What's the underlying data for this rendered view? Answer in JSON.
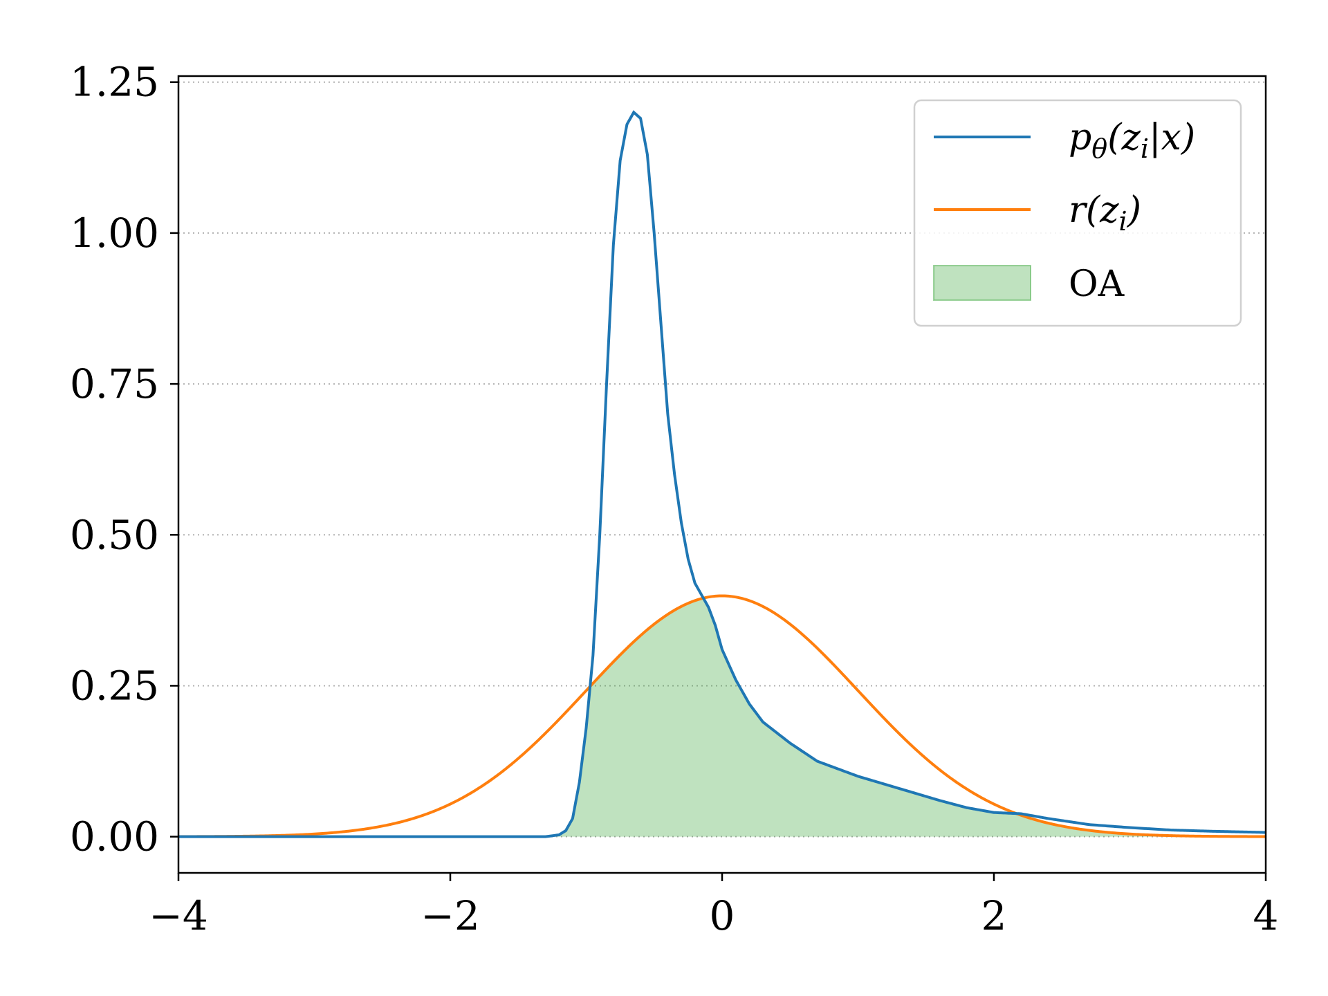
{
  "chart_data": {
    "type": "line",
    "title": "",
    "xlabel": "",
    "ylabel": "",
    "xlim": [
      -4,
      4
    ],
    "ylim": [
      -0.06,
      1.26
    ],
    "x_ticks": [
      -4,
      -2,
      0,
      2,
      4
    ],
    "x_tick_labels": [
      "−4",
      "−2",
      "0",
      "2",
      "4"
    ],
    "y_ticks": [
      0,
      0.25,
      0.5,
      0.75,
      1.0,
      1.25
    ],
    "y_tick_labels": [
      "0.00",
      "0.25",
      "0.50",
      "0.75",
      "1.00",
      "1.25"
    ],
    "grid": "horizontal dotted",
    "legend_position": "upper right",
    "series": [
      {
        "name": "p_θ(z_i|x)",
        "legend": {
          "base": "p",
          "sub": "θ",
          "rest": "(z",
          "sub2": "i",
          "tail": "|x)"
        },
        "color": "#1f77b4",
        "x": [
          -4.0,
          -1.3,
          -1.2,
          -1.15,
          -1.1,
          -1.05,
          -1.0,
          -0.95,
          -0.9,
          -0.85,
          -0.8,
          -0.75,
          -0.7,
          -0.65,
          -0.6,
          -0.55,
          -0.5,
          -0.45,
          -0.4,
          -0.35,
          -0.3,
          -0.25,
          -0.2,
          -0.15,
          -0.1,
          -0.05,
          0.0,
          0.1,
          0.2,
          0.3,
          0.5,
          0.7,
          1.0,
          1.3,
          1.6,
          1.8,
          2.0,
          2.2,
          2.4,
          2.7,
          3.0,
          3.3,
          3.6,
          4.0
        ],
        "y": [
          0.0,
          0.0,
          0.003,
          0.01,
          0.03,
          0.09,
          0.18,
          0.3,
          0.5,
          0.75,
          0.98,
          1.12,
          1.18,
          1.2,
          1.19,
          1.13,
          1.0,
          0.85,
          0.7,
          0.6,
          0.52,
          0.46,
          0.42,
          0.4,
          0.38,
          0.35,
          0.31,
          0.26,
          0.22,
          0.19,
          0.155,
          0.125,
          0.1,
          0.08,
          0.06,
          0.048,
          0.04,
          0.038,
          0.03,
          0.02,
          0.015,
          0.011,
          0.009,
          0.007
        ]
      },
      {
        "name": "r(z_i)",
        "legend": {
          "base": "r(z",
          "sub": "i",
          "rest": ")",
          "sub2": "",
          "tail": ""
        },
        "color": "#ff7f0e",
        "distribution": "normal",
        "mean": 0,
        "std": 1
      }
    ],
    "fill": {
      "name": "OA",
      "color": "#2ca02c",
      "opacity": 0.3,
      "between": "min of the two series"
    }
  }
}
